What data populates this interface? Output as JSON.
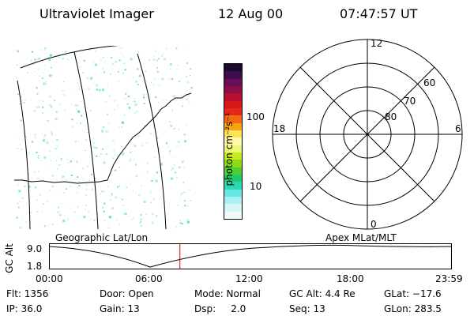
{
  "header": {
    "instrument": "Ultraviolet Imager",
    "date": "12 Aug 00",
    "time": "07:47:57 UT"
  },
  "colorbar": {
    "label": "photon cm⁻²s⁻¹",
    "ticks": [
      "100",
      "10"
    ],
    "colors": [
      "#1a0a2e",
      "#3c0c4c",
      "#6a0c58",
      "#8c0e46",
      "#b4102e",
      "#d21818",
      "#e6281a",
      "#f36a12",
      "#fba412",
      "#fde25a",
      "#fff9a8",
      "#ecf774",
      "#c6ec20",
      "#8edc18",
      "#4cd030",
      "#22c86c",
      "#2ed8b4",
      "#66e8e4",
      "#a8f0f2",
      "#d8f5f8",
      "#f0f9fb"
    ]
  },
  "polar": {
    "mlt_labels": {
      "top": "12",
      "left": "18",
      "right": "6",
      "bottom": "0"
    },
    "lat_labels": [
      "60",
      "70",
      "80"
    ]
  },
  "geo_label": "Geographic Lat/Lon",
  "apex_label": "Apex MLat/MLT",
  "alt_plot": {
    "axis_title": "GC Alt",
    "ytick_top": "9.0",
    "ytick_bottom": "1.8",
    "xticks": [
      "00:00",
      "06:00",
      "12:00",
      "18:00",
      "23:59"
    ],
    "current_time_marker_hour": 7.8
  },
  "info": {
    "row1": {
      "flt": "Flt: 1356",
      "door": "Door: Open",
      "mode": "Mode: Normal",
      "gcalt": "GC Alt: 4.4 Re",
      "glat": "GLat: −17.6"
    },
    "row2": {
      "ip": "IP: 36.0",
      "gain": "Gain: 13",
      "dsp": "Dsp:     2.0",
      "seq": "Seq: 13",
      "glon": "GLon: 283.5"
    }
  },
  "marker_color": "#e00000"
}
